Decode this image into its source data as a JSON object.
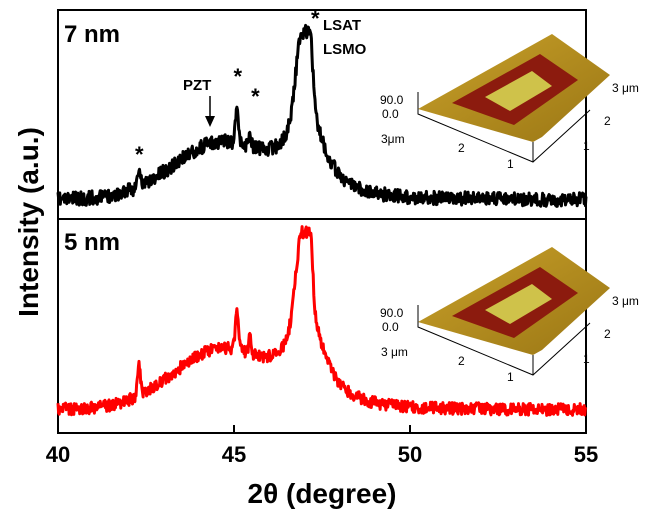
{
  "chart_data": {
    "type": "line",
    "xlabel": "2θ (degree)",
    "ylabel": "Intensity (a.u.)",
    "xlim": [
      40,
      55
    ],
    "x_ticks": [
      40,
      45,
      50,
      55
    ],
    "y_ticks_visible": false,
    "panels": [
      {
        "label": "7 nm",
        "color": "#000000",
        "peaks_deg": [
          42.3,
          45.1,
          45.5,
          46.9,
          47.1
        ],
        "annotations": {
          "pzt": "PZT",
          "pzt_x": 44.4,
          "lsat": "LSAT",
          "lsmo": "LSMO",
          "star": "*",
          "star_x": [
            42.3,
            45.1,
            45.6,
            47.3
          ]
        },
        "inset": {
          "z_label": "90.0",
          "z_zero": "0.0",
          "axis_a": "3μm",
          "axis_b": "3 μm",
          "ticks_a": [
            "2",
            "1"
          ],
          "ticks_b": [
            "2",
            "1"
          ]
        }
      },
      {
        "label": "5 nm",
        "color": "#ff0000",
        "peaks_deg": [
          42.3,
          45.1,
          45.5,
          46.9,
          47.1
        ],
        "inset": {
          "z_label": "90.0",
          "z_zero": "0.0",
          "axis_a": "3 μm",
          "axis_b": "3 μm",
          "ticks_a": [
            "2",
            "1"
          ],
          "ticks_b": [
            "2",
            "1"
          ]
        }
      }
    ]
  }
}
